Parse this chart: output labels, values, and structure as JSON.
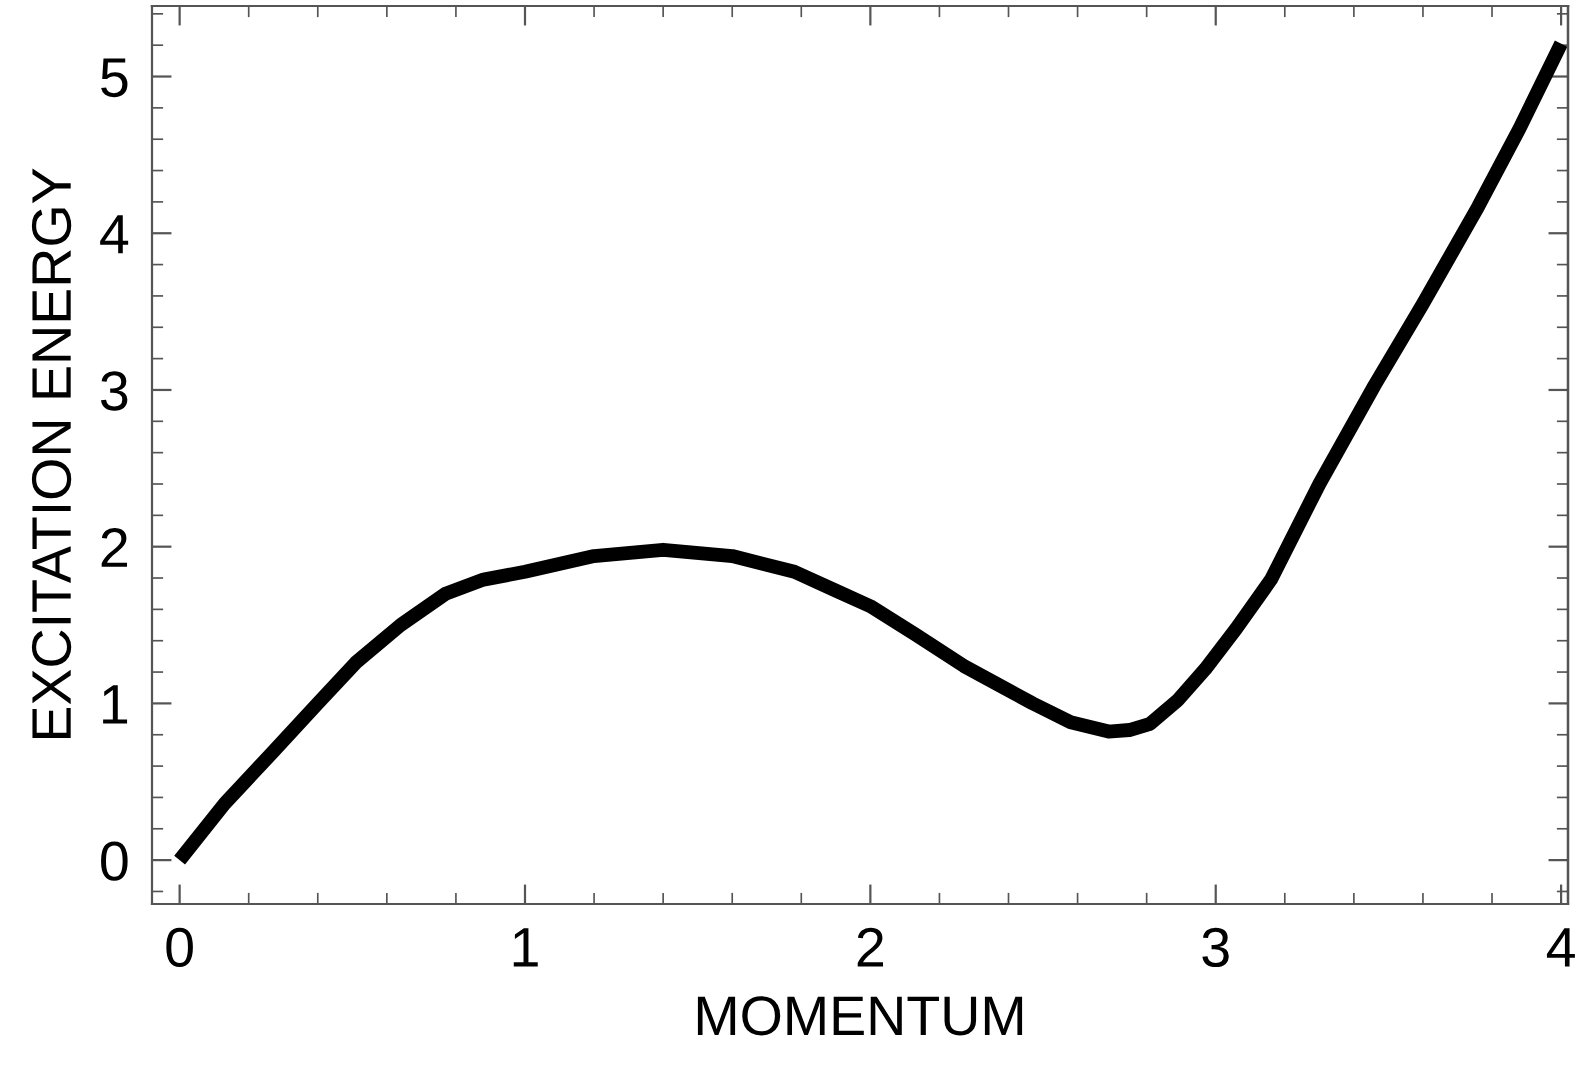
{
  "chart_data": {
    "type": "line",
    "xlabel": "MOMENTUM",
    "ylabel": "EXCITATION ENERGY",
    "series": [
      {
        "color": "#000000",
        "x": [
          0,
          0.13,
          0.27,
          0.4,
          0.51,
          0.64,
          0.77,
          0.88,
          1.0,
          1.2,
          1.4,
          1.6,
          1.78,
          1.9,
          2.0,
          2.13,
          2.27,
          2.37,
          2.47,
          2.58,
          2.69,
          2.75,
          2.81,
          2.89,
          2.97,
          3.06,
          3.16,
          3.3,
          3.46,
          3.6,
          3.76,
          3.88,
          4.0
        ],
        "values": [
          0,
          0.36,
          0.69,
          1.0,
          1.26,
          1.5,
          1.7,
          1.79,
          1.84,
          1.94,
          1.98,
          1.94,
          1.84,
          1.72,
          1.62,
          1.44,
          1.24,
          1.12,
          1.0,
          0.88,
          0.82,
          0.83,
          0.87,
          1.02,
          1.22,
          1.48,
          1.79,
          2.4,
          3.03,
          3.55,
          4.17,
          4.67,
          5.21
        ]
      }
    ],
    "xlim": [
      -0.08,
      4.02
    ],
    "ylim": [
      -0.28,
      5.45
    ],
    "xticks": [
      0,
      {
        "value": 0.2,
        "label": null
      },
      {
        "value": 0.4,
        "label": null
      },
      {
        "value": 0.6,
        "label": null
      },
      {
        "value": 0.8,
        "label": null
      },
      1,
      {
        "value": 1.2,
        "label": null
      },
      {
        "value": 1.4,
        "label": null
      },
      {
        "value": 1.6,
        "label": null
      },
      {
        "value": 1.8,
        "label": null
      },
      2,
      {
        "value": 2.2,
        "label": null
      },
      {
        "value": 2.4,
        "label": null
      },
      {
        "value": 2.6,
        "label": null
      },
      {
        "value": 2.8,
        "label": null
      },
      3,
      {
        "value": 3.2,
        "label": null
      },
      {
        "value": 3.4,
        "label": null
      },
      {
        "value": 3.6,
        "label": null
      },
      {
        "value": 3.8,
        "label": null
      },
      4
    ],
    "yticks": [
      {
        "value": -0.2,
        "label": null
      },
      0,
      {
        "value": 0.2,
        "label": null
      },
      {
        "value": 0.4,
        "label": null
      },
      {
        "value": 0.6,
        "label": null
      },
      {
        "value": 0.8,
        "label": null
      },
      1,
      {
        "value": 1.2,
        "label": null
      },
      {
        "value": 1.4,
        "label": null
      },
      {
        "value": 1.6,
        "label": null
      },
      {
        "value": 1.8,
        "label": null
      },
      2,
      {
        "value": 2.2,
        "label": null
      },
      {
        "value": 2.4,
        "label": null
      },
      {
        "value": 2.6,
        "label": null
      },
      {
        "value": 2.8,
        "label": null
      },
      3,
      {
        "value": 3.2,
        "label": null
      },
      {
        "value": 3.4,
        "label": null
      },
      {
        "value": 3.6,
        "label": null
      },
      {
        "value": 3.8,
        "label": null
      },
      4,
      {
        "value": 4.2,
        "label": null
      },
      {
        "value": 4.4,
        "label": null
      },
      {
        "value": 4.6,
        "label": null
      },
      {
        "value": 4.8,
        "label": null
      },
      5,
      {
        "value": 5.2,
        "label": null
      },
      {
        "value": 5.4,
        "label": null
      }
    ],
    "grid": false,
    "legend": false,
    "marker": "none",
    "line_style": "solid"
  }
}
